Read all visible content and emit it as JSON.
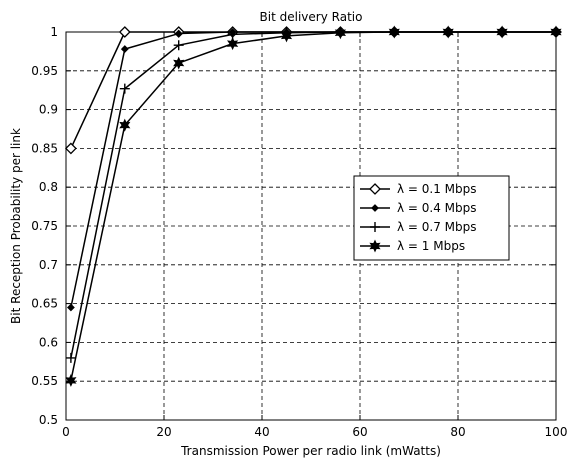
{
  "chart_data": {
    "type": "line",
    "title": "Bit delivery Ratio",
    "xlabel": "Transmission Power per radio link (mWatts)",
    "ylabel": "Bit Reception Probability per link",
    "xlim": [
      0,
      100
    ],
    "ylim": [
      0.5,
      1
    ],
    "xticks": [
      "0",
      "20",
      "40",
      "60",
      "80",
      "100"
    ],
    "yticks": [
      "0.5",
      "0.55",
      "0.6",
      "0.65",
      "0.7",
      "0.75",
      "0.8",
      "0.85",
      "0.9",
      "0.95",
      "1"
    ],
    "grid": true,
    "legend_position": "right",
    "colors": {
      "line": "#000000",
      "grid": "#000000",
      "background": "#ffffff"
    },
    "x": [
      1,
      12,
      23,
      34,
      45,
      56,
      67,
      78,
      89,
      100
    ],
    "series": [
      {
        "name": "λ = 0.1 Mbps",
        "marker": "diamond",
        "values": [
          0.85,
          1.0,
          1.0,
          1.0,
          1.0,
          1.0,
          1.0,
          1.0,
          1.0,
          1.0
        ]
      },
      {
        "name": "λ = 0.4 Mbps",
        "marker": "point",
        "values": [
          0.645,
          0.978,
          0.998,
          1.0,
          1.0,
          1.0,
          1.0,
          1.0,
          1.0,
          1.0
        ]
      },
      {
        "name": "λ = 0.7 Mbps",
        "marker": "plus",
        "values": [
          0.58,
          0.927,
          0.983,
          0.997,
          0.999,
          1.0,
          1.0,
          1.0,
          1.0,
          1.0
        ]
      },
      {
        "name": "λ = 1 Mbps",
        "marker": "hexagram",
        "values": [
          0.551,
          0.88,
          0.96,
          0.985,
          0.995,
          0.999,
          1.0,
          1.0,
          1.0,
          1.0
        ]
      }
    ]
  }
}
